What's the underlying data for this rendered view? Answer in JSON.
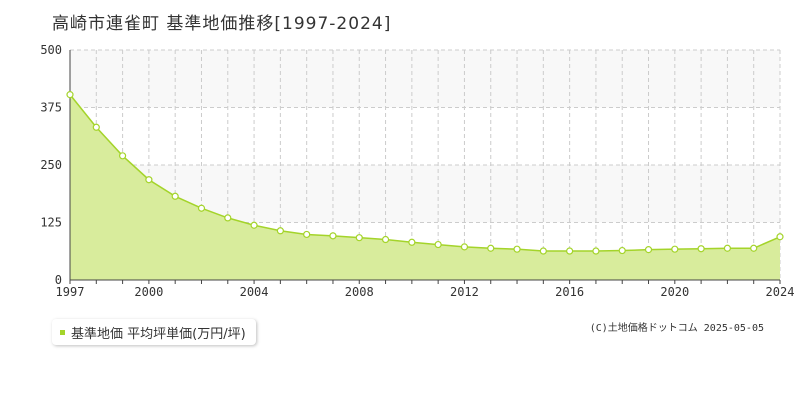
{
  "chart_data": {
    "type": "area",
    "title": "高崎市連雀町 基準地価推移[1997-2024]",
    "x": [
      1997,
      1998,
      1999,
      2000,
      2001,
      2002,
      2003,
      2004,
      2005,
      2006,
      2007,
      2008,
      2009,
      2010,
      2011,
      2012,
      2013,
      2014,
      2015,
      2016,
      2017,
      2018,
      2019,
      2020,
      2021,
      2022,
      2023,
      2024
    ],
    "series": [
      {
        "name": "基準地価 平均坪単価(万円/坪)",
        "values": [
          403,
          332,
          270,
          218,
          182,
          156,
          135,
          119,
          107,
          99,
          96,
          92,
          88,
          82,
          77,
          72,
          69,
          67,
          63,
          63,
          63,
          64,
          66,
          67,
          68,
          69,
          69,
          94
        ]
      }
    ],
    "x_ticks": [
      "1997",
      "2000",
      "2004",
      "2008",
      "2012",
      "2016",
      "2020",
      "2024"
    ],
    "y_ticks": [
      "0",
      "125",
      "250",
      "375",
      "500"
    ],
    "ylim": [
      0,
      500
    ],
    "xlim": [
      1997,
      2024
    ],
    "grid": true,
    "legend_position": "bottom-left",
    "colors": {
      "fill": "#d8ec9c",
      "line": "#a4d42a",
      "marker_fill": "#ffffff",
      "band": "#f8f8f8",
      "grid": "#cccccc"
    }
  },
  "legend": {
    "label": "基準地価 平均坪単価(万円/坪)"
  },
  "copyright": "(C)土地価格ドットコム 2025-05-05"
}
